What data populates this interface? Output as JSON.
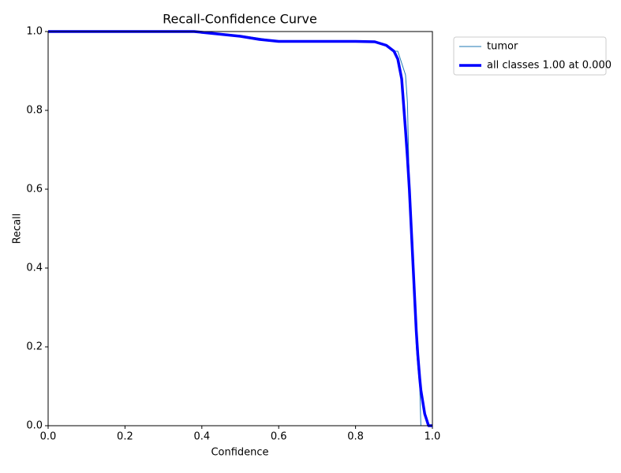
{
  "chart_data": {
    "type": "line",
    "title": "Recall-Confidence Curve",
    "x_label": "Confidence",
    "y_label": "Recall",
    "x": [
      0,
      0.2,
      0.38,
      0.45,
      0.5,
      0.55,
      0.6,
      0.7,
      0.8,
      0.85,
      0.88,
      0.9,
      0.91,
      0.92,
      0.93,
      0.935,
      0.94,
      0.95,
      0.958,
      0.962,
      0.967,
      0.97,
      0.98,
      0.99,
      1.0
    ],
    "series": [
      {
        "name": "tumor",
        "color": "#1f77b4",
        "width": 1,
        "values": [
          1,
          1,
          1,
          0.995,
          0.99,
          0.983,
          0.975,
          0.975,
          0.975,
          0.975,
          0.965,
          0.95,
          0.95,
          0.92,
          0.89,
          0.82,
          0.6,
          0.4,
          0.2,
          0.15,
          0.1,
          0,
          0,
          0,
          0
        ]
      },
      {
        "name": "all classes 1.00 at 0.000",
        "color": "#0000ff",
        "width": 3.5,
        "values": [
          1,
          1,
          1,
          0.993,
          0.988,
          0.98,
          0.975,
          0.975,
          0.975,
          0.974,
          0.965,
          0.95,
          0.93,
          0.88,
          0.75,
          0.68,
          0.6,
          0.4,
          0.24,
          0.18,
          0.12,
          0.09,
          0.03,
          0,
          0
        ]
      }
    ],
    "xlim": [
      0,
      1
    ],
    "ylim": [
      0,
      1
    ],
    "xticks": [
      {
        "value": 0,
        "label": "0.0"
      },
      0.2,
      0.4,
      0.6,
      0.8,
      {
        "value": 1,
        "label": "1.0"
      }
    ],
    "yticks": [
      {
        "value": 0,
        "label": "0.0"
      },
      0.2,
      0.4,
      0.6,
      0.8,
      {
        "value": 1,
        "label": "1.0"
      }
    ],
    "legend": "outside-upper-right"
  }
}
